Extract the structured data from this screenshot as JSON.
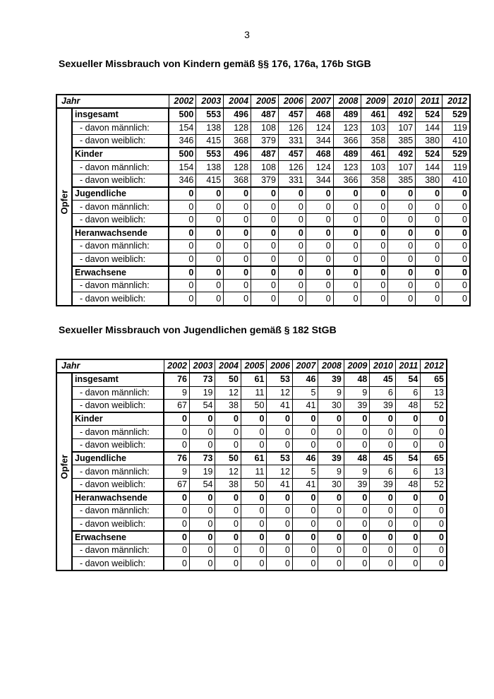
{
  "page_number": "3",
  "tables": [
    {
      "title": "Sexueller Missbrauch von Kindern gemäß §§ 176, 176a, 176b StGB",
      "header_label": "Jahr",
      "side_label": "Opfer",
      "years": [
        "2002",
        "2003",
        "2004",
        "2005",
        "2006",
        "2007",
        "2008",
        "2009",
        "2010",
        "2011",
        "2012"
      ],
      "rows": [
        {
          "label": "insgesamt",
          "bold": true,
          "values": [
            500,
            553,
            496,
            487,
            457,
            468,
            489,
            461,
            492,
            524,
            529
          ]
        },
        {
          "label": "- davon männlich:",
          "bold": false,
          "values": [
            154,
            138,
            128,
            108,
            126,
            124,
            123,
            103,
            107,
            144,
            119
          ]
        },
        {
          "label": "- davon weiblich:",
          "bold": false,
          "values": [
            346,
            415,
            368,
            379,
            331,
            344,
            366,
            358,
            385,
            380,
            410
          ]
        },
        {
          "label": "Kinder",
          "bold": true,
          "values": [
            500,
            553,
            496,
            487,
            457,
            468,
            489,
            461,
            492,
            524,
            529
          ]
        },
        {
          "label": "- davon männlich:",
          "bold": false,
          "values": [
            154,
            138,
            128,
            108,
            126,
            124,
            123,
            103,
            107,
            144,
            119
          ]
        },
        {
          "label": "- davon weiblich:",
          "bold": false,
          "values": [
            346,
            415,
            368,
            379,
            331,
            344,
            366,
            358,
            385,
            380,
            410
          ]
        },
        {
          "label": "Jugendliche",
          "bold": true,
          "values": [
            0,
            0,
            0,
            0,
            0,
            0,
            0,
            0,
            0,
            0,
            0
          ]
        },
        {
          "label": "- davon männlich:",
          "bold": false,
          "values": [
            0,
            0,
            0,
            0,
            0,
            0,
            0,
            0,
            0,
            0,
            0
          ]
        },
        {
          "label": "- davon weiblich:",
          "bold": false,
          "values": [
            0,
            0,
            0,
            0,
            0,
            0,
            0,
            0,
            0,
            0,
            0
          ]
        },
        {
          "label": "Heranwachsende",
          "bold": true,
          "values": [
            0,
            0,
            0,
            0,
            0,
            0,
            0,
            0,
            0,
            0,
            0
          ]
        },
        {
          "label": "- davon männlich:",
          "bold": false,
          "values": [
            0,
            0,
            0,
            0,
            0,
            0,
            0,
            0,
            0,
            0,
            0
          ]
        },
        {
          "label": "- davon weiblich:",
          "bold": false,
          "values": [
            0,
            0,
            0,
            0,
            0,
            0,
            0,
            0,
            0,
            0,
            0
          ]
        },
        {
          "label": "Erwachsene",
          "bold": true,
          "values": [
            0,
            0,
            0,
            0,
            0,
            0,
            0,
            0,
            0,
            0,
            0
          ]
        },
        {
          "label": "- davon männlich:",
          "bold": false,
          "values": [
            0,
            0,
            0,
            0,
            0,
            0,
            0,
            0,
            0,
            0,
            0
          ]
        },
        {
          "label": "- davon weiblich:",
          "bold": false,
          "values": [
            0,
            0,
            0,
            0,
            0,
            0,
            0,
            0,
            0,
            0,
            0
          ]
        }
      ]
    },
    {
      "title": "Sexueller Missbrauch von Jugendlichen gemäß § 182 StGB",
      "header_label": "Jahr",
      "side_label": "Opfer",
      "years": [
        "2002",
        "2003",
        "2004",
        "2005",
        "2006",
        "2007",
        "2008",
        "2009",
        "2010",
        "2011",
        "2012"
      ],
      "rows": [
        {
          "label": "insgesamt",
          "bold": true,
          "values": [
            76,
            73,
            50,
            61,
            53,
            46,
            39,
            48,
            45,
            54,
            65
          ]
        },
        {
          "label": "- davon männlich:",
          "bold": false,
          "values": [
            9,
            19,
            12,
            11,
            12,
            5,
            9,
            9,
            6,
            6,
            13
          ]
        },
        {
          "label": "- davon weiblich:",
          "bold": false,
          "values": [
            67,
            54,
            38,
            50,
            41,
            41,
            30,
            39,
            39,
            48,
            52
          ]
        },
        {
          "label": "Kinder",
          "bold": true,
          "values": [
            0,
            0,
            0,
            0,
            0,
            0,
            0,
            0,
            0,
            0,
            0
          ]
        },
        {
          "label": "- davon männlich:",
          "bold": false,
          "values": [
            0,
            0,
            0,
            0,
            0,
            0,
            0,
            0,
            0,
            0,
            0
          ]
        },
        {
          "label": "- davon weiblich:",
          "bold": false,
          "values": [
            0,
            0,
            0,
            0,
            0,
            0,
            0,
            0,
            0,
            0,
            0
          ]
        },
        {
          "label": "Jugendliche",
          "bold": true,
          "values": [
            76,
            73,
            50,
            61,
            53,
            46,
            39,
            48,
            45,
            54,
            65
          ]
        },
        {
          "label": "- davon männlich:",
          "bold": false,
          "values": [
            9,
            19,
            12,
            11,
            12,
            5,
            9,
            9,
            6,
            6,
            13
          ]
        },
        {
          "label": "- davon weiblich:",
          "bold": false,
          "values": [
            67,
            54,
            38,
            50,
            41,
            41,
            30,
            39,
            39,
            48,
            52
          ]
        },
        {
          "label": "Heranwachsende",
          "bold": true,
          "values": [
            0,
            0,
            0,
            0,
            0,
            0,
            0,
            0,
            0,
            0,
            0
          ]
        },
        {
          "label": "- davon männlich:",
          "bold": false,
          "values": [
            0,
            0,
            0,
            0,
            0,
            0,
            0,
            0,
            0,
            0,
            0
          ]
        },
        {
          "label": "- davon weiblich:",
          "bold": false,
          "values": [
            0,
            0,
            0,
            0,
            0,
            0,
            0,
            0,
            0,
            0,
            0
          ]
        },
        {
          "label": "Erwachsene",
          "bold": true,
          "values": [
            0,
            0,
            0,
            0,
            0,
            0,
            0,
            0,
            0,
            0,
            0
          ]
        },
        {
          "label": "- davon männlich:",
          "bold": false,
          "values": [
            0,
            0,
            0,
            0,
            0,
            0,
            0,
            0,
            0,
            0,
            0
          ]
        },
        {
          "label": "- davon weiblich:",
          "bold": false,
          "values": [
            0,
            0,
            0,
            0,
            0,
            0,
            0,
            0,
            0,
            0,
            0
          ]
        }
      ]
    }
  ]
}
